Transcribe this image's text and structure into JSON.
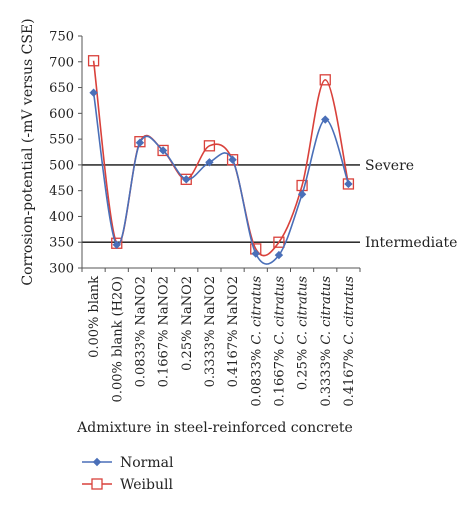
{
  "chart_data": {
    "type": "line",
    "ylabel": "Corrosion-potential (-mV versus CSE)",
    "xlabel": "Admixture in steel-reinforced concrete",
    "ylim": [
      300,
      750
    ],
    "yticks": [
      300,
      350,
      400,
      450,
      500,
      550,
      600,
      650,
      700,
      750
    ],
    "categories": [
      {
        "prefix": "0.00% blank",
        "italic": ""
      },
      {
        "prefix": "0.00% blank (H2O)",
        "italic": ""
      },
      {
        "prefix": "0.0833% NaNO2",
        "italic": ""
      },
      {
        "prefix": "0.1667% NaNO2",
        "italic": ""
      },
      {
        "prefix": "0.25% NaNO2",
        "italic": ""
      },
      {
        "prefix": "0.3333% NaNO2",
        "italic": ""
      },
      {
        "prefix": "0.4167% NaNO2",
        "italic": ""
      },
      {
        "prefix": "0.0833% ",
        "italic": "C. citratus"
      },
      {
        "prefix": "0.1667% ",
        "italic": "C. citratus"
      },
      {
        "prefix": "0.25% ",
        "italic": "C. citratus"
      },
      {
        "prefix": "0.3333% ",
        "italic": "C. citratus"
      },
      {
        "prefix": "0.4167% ",
        "italic": "C. citratus"
      }
    ],
    "series": [
      {
        "name": "Normal",
        "color": "#4a6fb8",
        "marker": "diamond",
        "values": [
          640,
          345,
          543,
          528,
          472,
          505,
          510,
          328,
          325,
          443,
          588,
          463
        ]
      },
      {
        "name": "Weibull",
        "color": "#d9413b",
        "marker": "square",
        "values": [
          702,
          348,
          545,
          528,
          472,
          537,
          510,
          337,
          350,
          460,
          665,
          463
        ]
      }
    ],
    "thresholds": [
      {
        "value": 500,
        "label": "Severe"
      },
      {
        "value": 350,
        "label": "Intermediate"
      }
    ],
    "legend_position": "bottom-left"
  }
}
